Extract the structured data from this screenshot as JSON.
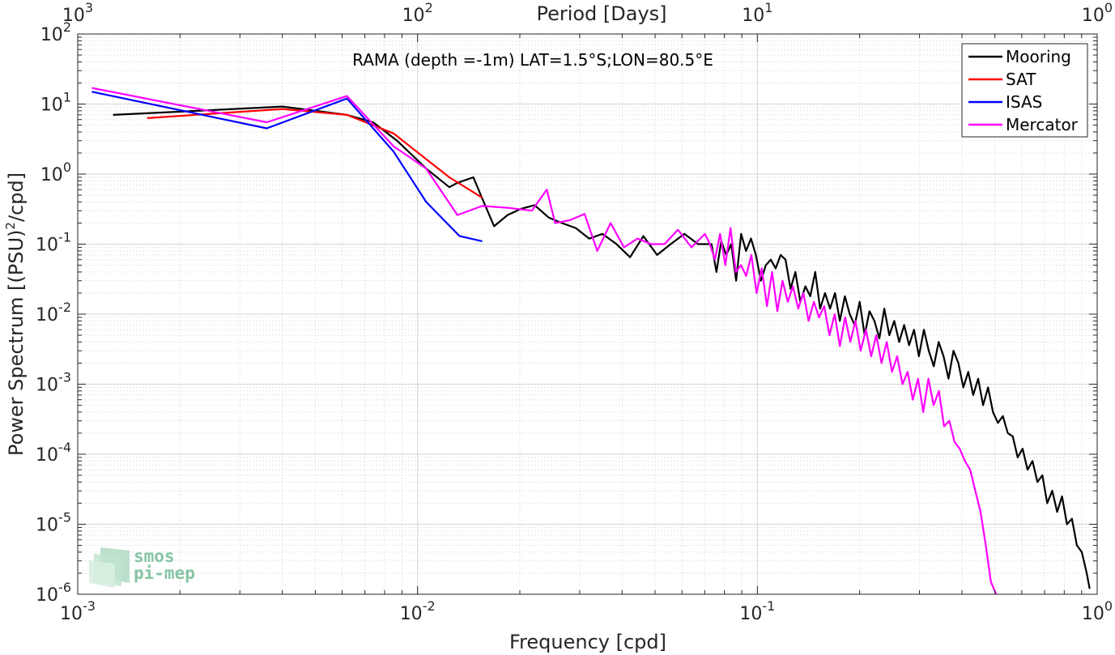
{
  "chart_data": {
    "type": "line",
    "title": "RAMA (depth =-1m) LAT=1.5°S;LON=80.5°E",
    "xlabel": "Frequency [cpd]",
    "ylabel_main": "Power Spectrum [(PSU)",
    "ylabel_sup": "2",
    "ylabel_tail": "/cpd]",
    "x2label": "Period [Days]",
    "xscale": "log",
    "yscale": "log",
    "xlim": [
      0.001,
      1
    ],
    "ylim": [
      1e-06,
      100
    ],
    "grid": true,
    "legend_position": "top-right",
    "x_ticks": [
      {
        "value": 0.001,
        "base": "10",
        "exp": "-3"
      },
      {
        "value": 0.01,
        "base": "10",
        "exp": "-2"
      },
      {
        "value": 0.1,
        "base": "10",
        "exp": "-1"
      },
      {
        "value": 1,
        "base": "10",
        "exp": "0"
      }
    ],
    "x2_ticks": [
      {
        "value": 0.001,
        "base": "10",
        "exp": "3"
      },
      {
        "value": 0.01,
        "base": "10",
        "exp": "2"
      },
      {
        "value": 0.1,
        "base": "10",
        "exp": "1"
      },
      {
        "value": 1,
        "base": "10",
        "exp": "0"
      }
    ],
    "y_ticks": [
      {
        "value": 100,
        "base": "10",
        "exp": "2"
      },
      {
        "value": 10,
        "base": "10",
        "exp": "1"
      },
      {
        "value": 1,
        "base": "10",
        "exp": "0"
      },
      {
        "value": 0.1,
        "base": "10",
        "exp": "-1"
      },
      {
        "value": 0.01,
        "base": "10",
        "exp": "-2"
      },
      {
        "value": 0.001,
        "base": "10",
        "exp": "-3"
      },
      {
        "value": 0.0001,
        "base": "10",
        "exp": "-4"
      },
      {
        "value": 1e-05,
        "base": "10",
        "exp": "-5"
      },
      {
        "value": 1e-06,
        "base": "10",
        "exp": "-6"
      }
    ],
    "series": [
      {
        "name": "Mooring",
        "color": "#000000",
        "x": [
          0.00127,
          0.00225,
          0.004,
          0.0062,
          0.0074,
          0.0087,
          0.0106,
          0.0124,
          0.0131,
          0.0146,
          0.0155,
          0.0168,
          0.0184,
          0.0202,
          0.0221,
          0.0243,
          0.0266,
          0.0292,
          0.032,
          0.035,
          0.0385,
          0.0422,
          0.0462,
          0.0507,
          0.0556,
          0.061,
          0.0669,
          0.0733,
          0.0758,
          0.0783,
          0.081,
          0.0838,
          0.0866,
          0.0896,
          0.0926,
          0.0958,
          0.099,
          0.1024,
          0.1059,
          0.1095,
          0.1132,
          0.1171,
          0.121,
          0.1252,
          0.1294,
          0.1338,
          0.1384,
          0.1431,
          0.148,
          0.153,
          0.1582,
          0.1636,
          0.1692,
          0.1749,
          0.1809,
          0.187,
          0.1934,
          0.2,
          0.2068,
          0.2138,
          0.2211,
          0.2286,
          0.2364,
          0.2445,
          0.2528,
          0.2614,
          0.2703,
          0.2795,
          0.289,
          0.2988,
          0.309,
          0.3195,
          0.3304,
          0.3416,
          0.3532,
          0.3652,
          0.3777,
          0.3905,
          0.4038,
          0.4175,
          0.4317,
          0.4464,
          0.4616,
          0.4773,
          0.4935,
          0.5103,
          0.5277,
          0.5456,
          0.5642,
          0.5834,
          0.6032,
          0.6237,
          0.645,
          0.6669,
          0.6896,
          0.713,
          0.7373,
          0.7624,
          0.7883,
          0.8151,
          0.8428,
          0.8715,
          0.9011,
          0.9318,
          0.95
        ],
        "y": [
          7.0,
          8.0,
          9.2,
          7.0,
          5.5,
          3.0,
          1.2,
          0.65,
          0.75,
          0.9,
          0.45,
          0.18,
          0.26,
          0.32,
          0.36,
          0.24,
          0.2,
          0.17,
          0.12,
          0.14,
          0.1,
          0.065,
          0.13,
          0.07,
          0.1,
          0.14,
          0.1,
          0.1,
          0.04,
          0.11,
          0.07,
          0.1,
          0.03,
          0.14,
          0.08,
          0.12,
          0.07,
          0.03,
          0.05,
          0.06,
          0.045,
          0.07,
          0.06,
          0.023,
          0.04,
          0.015,
          0.025,
          0.018,
          0.04,
          0.012,
          0.02,
          0.012,
          0.02,
          0.008,
          0.018,
          0.01,
          0.007,
          0.015,
          0.005,
          0.011,
          0.008,
          0.0045,
          0.012,
          0.005,
          0.008,
          0.004,
          0.007,
          0.0036,
          0.006,
          0.0025,
          0.006,
          0.003,
          0.0018,
          0.004,
          0.0025,
          0.0012,
          0.003,
          0.002,
          0.0009,
          0.0015,
          0.0007,
          0.0012,
          0.0005,
          0.0009,
          0.0004,
          0.00028,
          0.00035,
          0.0002,
          0.00018,
          9e-05,
          0.00012,
          6e-05,
          8e-05,
          4e-05,
          5e-05,
          2e-05,
          3e-05,
          1.5e-05,
          2.5e-05,
          1e-05,
          1.2e-05,
          5e-06,
          4e-06,
          2e-06,
          1.2e-06
        ]
      },
      {
        "name": "SAT",
        "color": "#ff0000",
        "x": [
          0.0016,
          0.004,
          0.0062,
          0.0085,
          0.0124,
          0.0155
        ],
        "y": [
          6.3,
          8.5,
          7.0,
          3.8,
          0.9,
          0.46
        ]
      },
      {
        "name": "ISAS",
        "color": "#0000ff",
        "x": [
          0.0011,
          0.0036,
          0.0062,
          0.0085,
          0.0106,
          0.0133,
          0.0155
        ],
        "y": [
          15.0,
          4.5,
          12.0,
          2.1,
          0.4,
          0.13,
          0.11
        ]
      },
      {
        "name": "Mercator",
        "color": "#ff00ff",
        "x": [
          0.0011,
          0.0036,
          0.0062,
          0.0085,
          0.0106,
          0.0131,
          0.0155,
          0.0184,
          0.0217,
          0.024,
          0.0254,
          0.0281,
          0.031,
          0.0338,
          0.037,
          0.0405,
          0.0444,
          0.0487,
          0.0533,
          0.0584,
          0.064,
          0.0701,
          0.0725,
          0.075,
          0.0777,
          0.0805,
          0.0834,
          0.0864,
          0.0895,
          0.0927,
          0.096,
          0.0995,
          0.103,
          0.1067,
          0.1105,
          0.1145,
          0.1186,
          0.1229,
          0.1273,
          0.1319,
          0.1366,
          0.1415,
          0.1466,
          0.1519,
          0.1573,
          0.163,
          0.1688,
          0.1749,
          0.1812,
          0.1877,
          0.1944,
          0.2014,
          0.2087,
          0.2162,
          0.2239,
          0.232,
          0.2403,
          0.249,
          0.2579,
          0.2672,
          0.2768,
          0.2867,
          0.297,
          0.3077,
          0.3188,
          0.3302,
          0.3421,
          0.3544,
          0.3671,
          0.3803,
          0.394,
          0.4081,
          0.4228,
          0.438,
          0.4537,
          0.47,
          0.4869,
          0.5044
        ],
        "y": [
          17.0,
          5.5,
          13.0,
          2.5,
          1.2,
          0.26,
          0.35,
          0.33,
          0.3,
          0.6,
          0.2,
          0.22,
          0.27,
          0.08,
          0.2,
          0.09,
          0.12,
          0.1,
          0.1,
          0.16,
          0.09,
          0.14,
          0.1,
          0.06,
          0.14,
          0.05,
          0.17,
          0.04,
          0.05,
          0.035,
          0.07,
          0.02,
          0.045,
          0.013,
          0.04,
          0.011,
          0.03,
          0.015,
          0.025,
          0.012,
          0.02,
          0.008,
          0.015,
          0.009,
          0.013,
          0.005,
          0.01,
          0.0035,
          0.009,
          0.004,
          0.008,
          0.003,
          0.006,
          0.0025,
          0.005,
          0.002,
          0.004,
          0.0015,
          0.0025,
          0.001,
          0.0015,
          0.0006,
          0.0012,
          0.0004,
          0.0012,
          0.0005,
          0.0008,
          0.00025,
          0.0003,
          0.00015,
          0.00012,
          8e-05,
          6e-05,
          3e-05,
          1.5e-05,
          5e-06,
          1.5e-06,
          1e-06
        ]
      }
    ]
  },
  "logo": {
    "line1": "smos",
    "line2": "pi-mep",
    "color": "#86c4a3"
  }
}
